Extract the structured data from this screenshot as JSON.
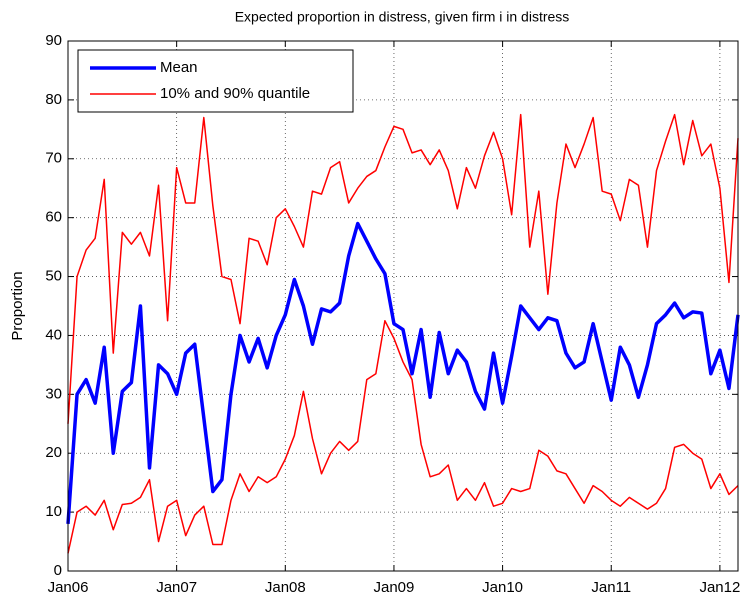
{
  "chart_data": {
    "type": "line",
    "title": "Expected proportion in distress, given firm i in distress",
    "y_label": "Proportion",
    "x": [
      "2006-01",
      "2006-02",
      "2006-03",
      "2006-04",
      "2006-05",
      "2006-06",
      "2006-07",
      "2006-08",
      "2006-09",
      "2006-10",
      "2006-11",
      "2006-12",
      "2007-01",
      "2007-02",
      "2007-03",
      "2007-04",
      "2007-05",
      "2007-06",
      "2007-07",
      "2007-08",
      "2007-09",
      "2007-10",
      "2007-11",
      "2007-12",
      "2008-01",
      "2008-02",
      "2008-03",
      "2008-04",
      "2008-05",
      "2008-06",
      "2008-07",
      "2008-08",
      "2008-09",
      "2008-10",
      "2008-11",
      "2008-12",
      "2009-01",
      "2009-02",
      "2009-03",
      "2009-04",
      "2009-05",
      "2009-06",
      "2009-07",
      "2009-08",
      "2009-09",
      "2009-10",
      "2009-11",
      "2009-12",
      "2010-01",
      "2010-02",
      "2010-03",
      "2010-04",
      "2010-05",
      "2010-06",
      "2010-07",
      "2010-08",
      "2010-09",
      "2010-10",
      "2010-11",
      "2010-12",
      "2011-01",
      "2011-02",
      "2011-03",
      "2011-04",
      "2011-05",
      "2011-06",
      "2011-07",
      "2011-08",
      "2011-09",
      "2011-10",
      "2011-11",
      "2011-12",
      "2012-01",
      "2012-02",
      "2012-03"
    ],
    "series": [
      {
        "name": "Mean",
        "color": "#0000ff",
        "values": [
          8,
          30,
          32.5,
          28.5,
          38,
          20,
          30.5,
          32,
          45,
          17.5,
          35,
          33.5,
          30,
          37,
          38.5,
          26,
          13.5,
          15.5,
          30,
          40,
          35.5,
          39.5,
          34.5,
          40,
          43.5,
          49.5,
          45,
          38.5,
          44.5,
          44,
          45.5,
          53.5,
          59,
          56,
          53,
          50.5,
          42,
          41,
          33.5,
          41,
          29.5,
          40.5,
          33.5,
          37.5,
          35.5,
          30.5,
          27.5,
          37,
          28.5,
          36.5,
          45,
          43,
          41,
          43,
          42.5,
          37,
          34.5,
          35.5,
          42,
          35.5,
          29,
          38,
          35,
          29.5,
          35,
          42,
          43.5,
          45.5,
          43,
          44,
          43.8,
          33.5,
          37.5,
          31,
          43.5
        ]
      },
      {
        "name": "10% and 90% quantile",
        "color": "#ff0000",
        "upper": [
          25,
          50,
          54.5,
          56.5,
          66.5,
          37,
          57.5,
          55.5,
          57.5,
          53.5,
          65.5,
          42.5,
          68.5,
          62.5,
          62.5,
          77,
          62,
          50,
          49.5,
          42,
          56.5,
          56,
          52,
          60,
          61.5,
          58.5,
          55,
          64.5,
          64,
          68.5,
          69.5,
          62.5,
          65,
          67,
          68,
          72,
          75.5,
          75,
          71,
          71.5,
          69,
          71.5,
          68,
          61.5,
          68.5,
          65,
          70.5,
          74.5,
          70,
          60.5,
          77.5,
          55,
          64.5,
          47,
          62.5,
          72.5,
          68.5,
          72.5,
          77,
          64.5,
          64,
          59.5,
          66.5,
          65.5,
          55,
          68,
          73,
          77.5,
          69,
          76.5,
          70.5,
          72.5,
          65,
          49,
          73.5
        ],
        "lower": [
          3,
          10,
          11,
          9.5,
          12,
          7,
          11.3,
          11.5,
          12.5,
          15.5,
          5,
          11,
          12,
          6,
          9.5,
          11,
          4.5,
          4.5,
          12,
          16.5,
          13.5,
          16,
          15,
          16,
          19,
          23,
          30.5,
          22.5,
          16.5,
          20,
          22,
          20.5,
          22,
          32.5,
          33.5,
          42.5,
          39.5,
          35.5,
          32.5,
          21.5,
          16,
          16.5,
          18,
          12,
          14,
          12,
          15,
          11,
          11.5,
          14,
          13.5,
          14,
          20.5,
          19.5,
          17,
          16.5,
          14,
          11.5,
          14.5,
          13.5,
          12,
          11,
          12.5,
          11.5,
          10.5,
          11.5,
          14,
          21,
          21.5,
          20,
          19,
          14,
          16.5,
          13,
          14.5
        ]
      }
    ],
    "xlim": [
      "2006-01",
      "2012-03"
    ],
    "xticks": [
      {
        "value": "2006-01",
        "label": "Jan06"
      },
      {
        "value": "2007-01",
        "label": "Jan07"
      },
      {
        "value": "2008-01",
        "label": "Jan08"
      },
      {
        "value": "2009-01",
        "label": "Jan09"
      },
      {
        "value": "2010-01",
        "label": "Jan10"
      },
      {
        "value": "2011-01",
        "label": "Jan11"
      },
      {
        "value": "2012-01",
        "label": "Jan12"
      }
    ],
    "ylim": [
      0,
      90
    ],
    "yticks": [
      0,
      10,
      20,
      30,
      40,
      50,
      60,
      70,
      80,
      90
    ],
    "grid": true,
    "legend": "upper-left"
  }
}
